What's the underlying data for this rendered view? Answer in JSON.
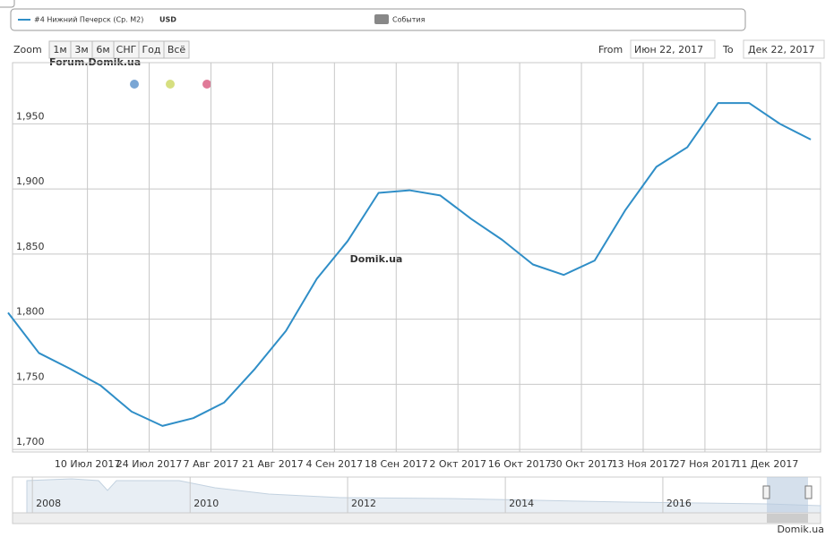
{
  "chart_data": {
    "type": "line",
    "legend_label": "#4 Нижний Печерск (Ср. М2)",
    "unit": "USD",
    "events_label": "События",
    "zoom_label": "Zoom",
    "zoom_buttons": [
      "1м",
      "3м",
      "6м",
      "СНГ",
      "Год",
      "Всё"
    ],
    "from_label": "From",
    "from_value": "Июн 22, 2017",
    "to_label": "To",
    "to_value": "Дек 22, 2017",
    "watermark": "Domik.ua",
    "forum_watermark": "Forum.Domik.ua",
    "credits": "Domik.ua",
    "grid": true,
    "x": [
      "2017-06-22",
      "2017-06-29",
      "2017-07-06",
      "2017-07-13",
      "2017-07-20",
      "2017-07-27",
      "2017-08-03",
      "2017-08-10",
      "2017-08-17",
      "2017-08-24",
      "2017-08-31",
      "2017-09-07",
      "2017-09-14",
      "2017-09-21",
      "2017-09-28",
      "2017-10-05",
      "2017-10-12",
      "2017-10-19",
      "2017-10-26",
      "2017-11-02",
      "2017-11-09",
      "2017-11-16",
      "2017-11-23",
      "2017-11-30",
      "2017-12-07",
      "2017-12-14",
      "2017-12-21"
    ],
    "series": [
      {
        "name": "#4 Нижний Печерск (Ср. М2)",
        "color": "#2f8ec7",
        "values": [
          1805,
          1774,
          1762,
          1749,
          1729,
          1718,
          1724,
          1736,
          1762,
          1791,
          1831,
          1860,
          1897,
          1899,
          1895,
          1877,
          1861,
          1842,
          1834,
          1845,
          1884,
          1917,
          1932,
          1966,
          1966,
          1950,
          1938
        ]
      }
    ],
    "xlim": [
      "2017-06-22",
      "2017-12-22"
    ],
    "xticks": [
      {
        "value": "2017-07-10",
        "label": "10 Июл 2017"
      },
      {
        "value": "2017-07-24",
        "label": "24 Июл 2017"
      },
      {
        "value": "2017-08-07",
        "label": "7 Авг 2017"
      },
      {
        "value": "2017-08-21",
        "label": "21 Авг 2017"
      },
      {
        "value": "2017-09-04",
        "label": "4 Сен 2017"
      },
      {
        "value": "2017-09-18",
        "label": "18 Сен 2017"
      },
      {
        "value": "2017-10-02",
        "label": "2 Окт 2017"
      },
      {
        "value": "2017-10-16",
        "label": "16 Окт 2017"
      },
      {
        "value": "2017-10-30",
        "label": "30 Окт 2017"
      },
      {
        "value": "2017-11-13",
        "label": "13 Ноя 2017"
      },
      {
        "value": "2017-11-27",
        "label": "27 Ноя 2017"
      },
      {
        "value": "2017-12-11",
        "label": "11 Дек 2017"
      }
    ],
    "ylim": [
      1698,
      1997
    ],
    "yticks": [
      {
        "value": 1700,
        "label": "1,700"
      },
      {
        "value": 1750,
        "label": "1,750"
      },
      {
        "value": 1800,
        "label": "1,800"
      },
      {
        "value": 1850,
        "label": "1,850"
      },
      {
        "value": 1900,
        "label": "1,900"
      },
      {
        "value": 1950,
        "label": "1,950"
      }
    ],
    "navigator_xlim": [
      "2007-10-01",
      "2018-01-01"
    ],
    "navigator_xticks": [
      {
        "value": "2008-01-01",
        "label": "2008"
      },
      {
        "value": "2010-01-01",
        "label": "2010"
      },
      {
        "value": "2012-01-01",
        "label": "2012"
      },
      {
        "value": "2014-01-01",
        "label": "2014"
      },
      {
        "value": "2016-01-01",
        "label": "2016"
      }
    ]
  }
}
